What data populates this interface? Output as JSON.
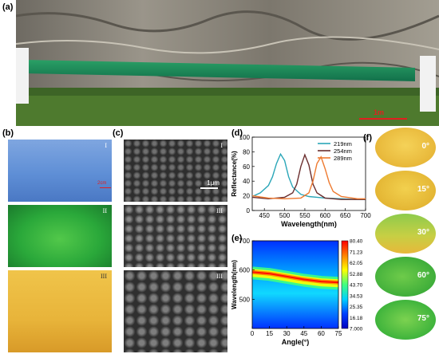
{
  "panels": {
    "a": "(a)",
    "b": "(b)",
    "c": "(c)",
    "d": "(d)",
    "e": "(e)",
    "f": "(f)"
  },
  "panel_a": {
    "scale_text": "1m",
    "colors": {
      "film": "#1e8a55",
      "rock": "#8a8478",
      "grass": "#4e7a2e"
    }
  },
  "panel_b": {
    "labels": [
      "I",
      "II",
      "III"
    ],
    "scale_text": "2cm",
    "colors": [
      "#6f9ad8",
      "#2aa83a",
      "#e8b43a"
    ]
  },
  "panel_c": {
    "labels": [
      "I",
      "III",
      "III"
    ],
    "scale_text": "1μm"
  },
  "panel_f": {
    "angles": [
      "0°",
      "15°",
      "30°",
      "60°",
      "75°"
    ]
  },
  "chart_data": [
    {
      "type": "line",
      "panel": "d",
      "xlabel": "Wavelength(nm)",
      "ylabel": "Reflectance(%)",
      "xlim": [
        420,
        700
      ],
      "ylim": [
        0,
        100
      ],
      "xticks": [
        450,
        500,
        550,
        600,
        650,
        700
      ],
      "yticks": [
        0,
        20,
        40,
        60,
        80,
        100
      ],
      "legend_placement": "top-right",
      "series": [
        {
          "name": "219nm",
          "color": "#2aa6b8",
          "x": [
            420,
            440,
            460,
            470,
            480,
            490,
            500,
            510,
            520,
            540,
            560,
            580,
            600,
            640,
            680,
            700
          ],
          "y": [
            19,
            24,
            34,
            46,
            64,
            77,
            68,
            46,
            32,
            22,
            19,
            18,
            17,
            16,
            15,
            15
          ]
        },
        {
          "name": "254nm",
          "color": "#6b2e2e",
          "x": [
            420,
            460,
            500,
            520,
            530,
            540,
            550,
            560,
            570,
            580,
            600,
            640,
            680,
            700
          ],
          "y": [
            18,
            16,
            18,
            24,
            36,
            60,
            76,
            62,
            36,
            24,
            17,
            15,
            15,
            15
          ]
        },
        {
          "name": "289nm",
          "color": "#ee7a30",
          "x": [
            420,
            460,
            500,
            540,
            560,
            570,
            580,
            590,
            600,
            610,
            620,
            640,
            680,
            700
          ],
          "y": [
            20,
            17,
            16,
            17,
            24,
            40,
            64,
            73,
            57,
            38,
            26,
            19,
            16,
            16
          ]
        }
      ]
    },
    {
      "type": "heatmap",
      "panel": "e",
      "xlabel": "Angle(°)",
      "ylabel": "Wavelength(nm)",
      "xlim": [
        0,
        75
      ],
      "ylim": [
        400,
        700
      ],
      "xticks": [
        0,
        15,
        30,
        45,
        60,
        75
      ],
      "yticks": [
        500,
        600,
        700
      ],
      "peak_wavelength_by_angle": {
        "angle": [
          0,
          15,
          30,
          45,
          60,
          75
        ],
        "wavelength": [
          590,
          585,
          575,
          565,
          558,
          555
        ]
      },
      "colorbar": {
        "ticks": [
          "80.40",
          "71.23",
          "62.05",
          "52.88",
          "43.70",
          "34.53",
          "25.35",
          "16.18",
          "7.000"
        ],
        "colors": [
          "#ff0000",
          "#ff8000",
          "#ffff00",
          "#40ff80",
          "#00d0ff",
          "#0040ff",
          "#0000c0"
        ]
      }
    }
  ]
}
